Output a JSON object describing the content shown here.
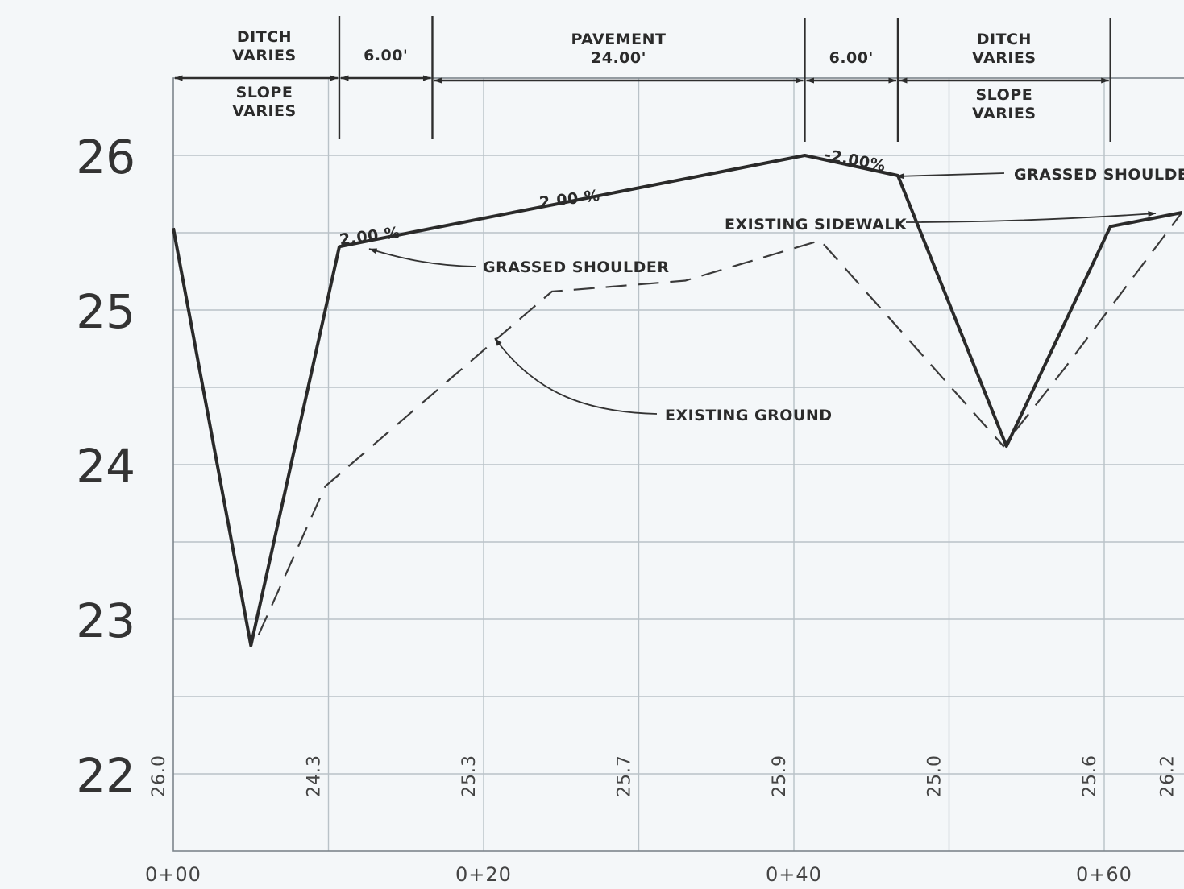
{
  "chart_data": {
    "type": "line",
    "x_ticks": [
      "0+00",
      "0+20",
      "0+40",
      "0+60"
    ],
    "y_ticks": [
      "22",
      "23",
      "24",
      "25",
      "26"
    ],
    "xlim": [
      0,
      65
    ],
    "ylim": [
      21.5,
      26.5
    ],
    "grid": true,
    "elevation_labels": [
      {
        "x": 0,
        "text": "26.0"
      },
      {
        "x": 10,
        "text": "24.3"
      },
      {
        "x": 20,
        "text": "25.3"
      },
      {
        "x": 30,
        "text": "25.7"
      },
      {
        "x": 40,
        "text": "25.9"
      },
      {
        "x": 50,
        "text": "25.0"
      },
      {
        "x": 60,
        "text": "25.6"
      },
      {
        "x": 65,
        "text": "26.2"
      }
    ],
    "series": [
      {
        "style": "solid",
        "x": [
          0,
          5,
          10.7,
          12.7,
          40.7,
          46.7,
          53.7,
          60.4,
          65
        ],
        "y": [
          25.53,
          22.83,
          25.41,
          25.45,
          26.0,
          25.87,
          24.12,
          25.54,
          25.63
        ]
      },
      {
        "style": "dashed",
        "x": [
          5.5,
          9.8,
          24.4,
          33,
          41.7,
          53.5,
          57.5,
          65
        ],
        "y": [
          22.9,
          23.86,
          25.12,
          25.19,
          25.45,
          24.12,
          24.63,
          25.63
        ]
      }
    ],
    "dimensions": [
      {
        "top": [
          "DITCH",
          "VARIES"
        ],
        "bottom": [
          "SLOPE",
          "VARIES"
        ],
        "from": 0,
        "to": 10.7
      },
      {
        "top": [
          "6.00'"
        ],
        "bottom": [],
        "from": 10.7,
        "to": 16.7
      },
      {
        "top": [
          "PAVEMENT",
          "24.00'"
        ],
        "bottom": [],
        "from": 16.7,
        "to": 40.7
      },
      {
        "top": [
          "6.00'"
        ],
        "bottom": [],
        "from": 40.7,
        "to": 46.7
      },
      {
        "top": [
          "DITCH",
          "VARIES"
        ],
        "bottom": [
          "SLOPE",
          "VARIES"
        ],
        "from": 46.7,
        "to": 60.4
      }
    ],
    "slope_labels": [
      "2.00 %",
      "2.00 %",
      "-2.00%"
    ],
    "callouts": [
      "GRASSED SHOULDER",
      "EXISTING GROUND",
      "GRASSED SHOULDE",
      "EXISTING SIDEWALK"
    ]
  }
}
